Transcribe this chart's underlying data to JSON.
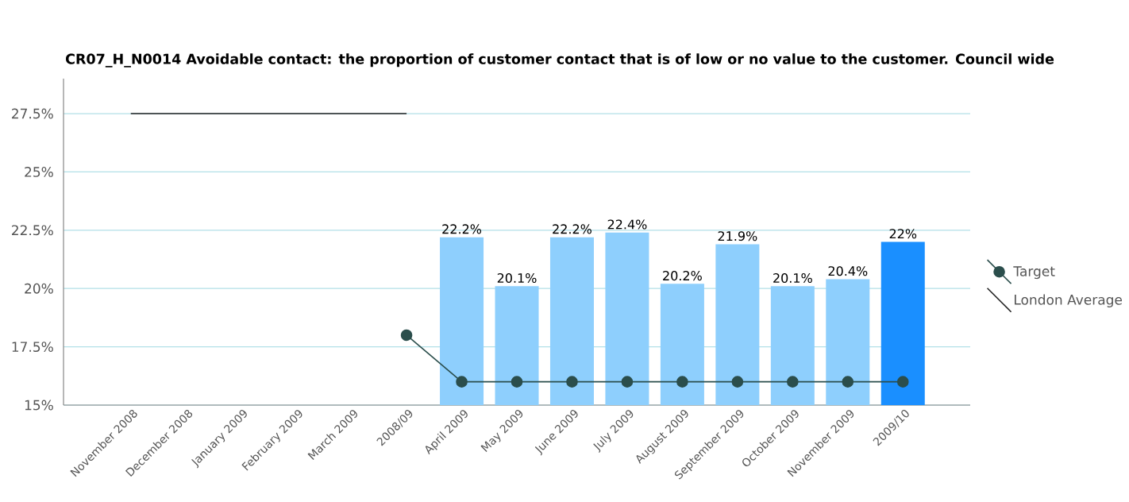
{
  "chart_data": {
    "type": "bar",
    "title": "CR07_H_N0014 Avoidable contact: the proportion of customer contact that is of low or no value to the customer. Council wide",
    "categories": [
      "November 2008",
      "December 2008",
      "January 2009",
      "February 2009",
      "March 2009",
      "2008/09",
      "April 2009",
      "May 2009",
      "June 2009",
      "July 2009",
      "August 2009",
      "September 2009",
      "October 2009",
      "November 2009",
      "2009/10"
    ],
    "series": [
      {
        "colors": [
          null,
          null,
          null,
          null,
          null,
          null,
          "#8ecffd",
          "#8ecffd",
          "#8ecffd",
          "#8ecffd",
          "#8ecffd",
          "#8ecffd",
          "#8ecffd",
          "#8ecffd",
          "#1a8fff"
        ],
        "values": [
          null,
          null,
          null,
          null,
          null,
          null,
          22.2,
          20.1,
          22.2,
          22.4,
          20.2,
          21.9,
          20.1,
          20.4,
          22
        ],
        "value_labels": [
          null,
          null,
          null,
          null,
          null,
          null,
          "22.2%",
          "20.1%",
          "22.2%",
          "22.4%",
          "20.2%",
          "21.9%",
          "20.1%",
          "20.4%",
          "22%"
        ]
      },
      {
        "type": "line",
        "name": "Target",
        "color": "#2b4e4c",
        "marker": "circle",
        "values": [
          null,
          null,
          null,
          null,
          null,
          18,
          16,
          16,
          16,
          16,
          16,
          16,
          16,
          16,
          16
        ]
      },
      {
        "type": "line",
        "name": "London Average",
        "color": "#222222",
        "marker": "none",
        "values": [
          27.5,
          27.5,
          27.5,
          27.5,
          27.5,
          27.5,
          null,
          null,
          null,
          null,
          null,
          null,
          null,
          null,
          null
        ]
      }
    ],
    "ylim": [
      15,
      29
    ],
    "yticks": [
      {
        "value": 15,
        "label": "15%"
      },
      {
        "value": 17.5,
        "label": "17.5%"
      },
      {
        "value": 20,
        "label": "20%"
      },
      {
        "value": 22.5,
        "label": "22.5%"
      },
      {
        "value": 25,
        "label": "25%"
      },
      {
        "value": 27.5,
        "label": "27.5%"
      }
    ],
    "grid": "y",
    "legend": "right"
  }
}
